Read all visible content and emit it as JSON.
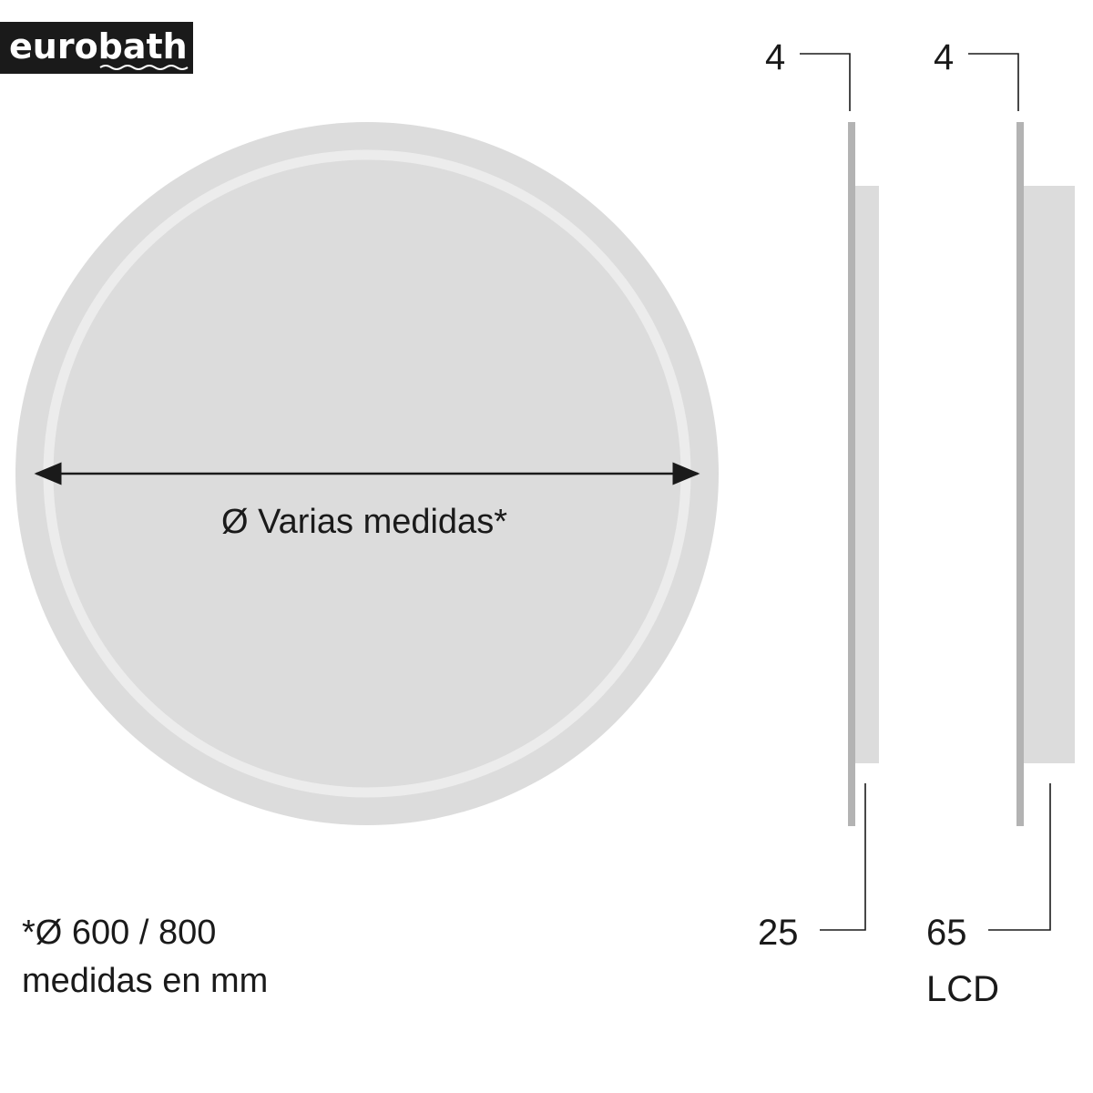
{
  "logo": {
    "text": "eurobath",
    "bg": "#1a1a1a"
  },
  "front_view": {
    "diameter_label": "Ø Varias medidas*",
    "colors": {
      "outer": "#dcdcdc",
      "ring": "#ececec"
    }
  },
  "side_views": [
    {
      "top_label": "4",
      "bottom_label": "25",
      "extra_label": ""
    },
    {
      "top_label": "4",
      "bottom_label": "65",
      "extra_label": "LCD"
    }
  ],
  "footnote": {
    "line1": "*Ø 600 / 800",
    "line2": "medidas en mm"
  }
}
